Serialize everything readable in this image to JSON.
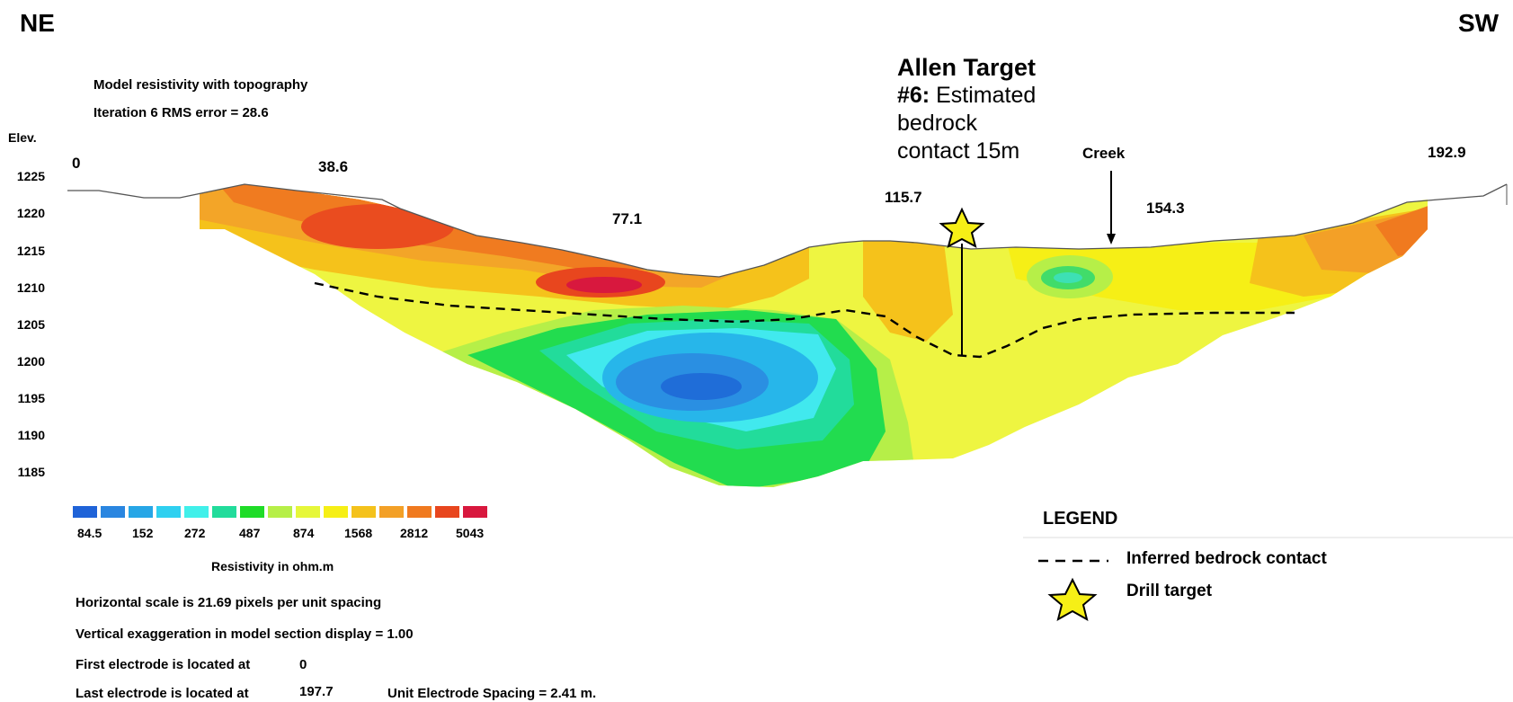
{
  "orientation": {
    "left": "NE",
    "right": "SW"
  },
  "header": {
    "line1": "Model resistivity with topography",
    "line2": "Iteration 6 RMS error = 28.6"
  },
  "elevation_axis": {
    "label": "Elev.",
    "ticks": [
      "1225",
      "1220",
      "1215",
      "1210",
      "1205",
      "1200",
      "1195",
      "1190",
      "1185"
    ]
  },
  "distance_axis": {
    "ticks": [
      "0",
      "38.6",
      "77.1",
      "115.7",
      "154.3",
      "192.9"
    ]
  },
  "annotations": {
    "creek": "Creek",
    "target_name": "Allen Target",
    "target_number": "#6:",
    "target_line1": "Estimated",
    "target_line2": "bedrock",
    "target_line3": "contact 15m"
  },
  "color_scale": {
    "colors": [
      "#1f63d8",
      "#2a86e0",
      "#27a6e6",
      "#2fd0f0",
      "#41f0ea",
      "#22dc9b",
      "#1fdc28",
      "#b6ef48",
      "#e6f73a",
      "#f6ef16",
      "#f4c21c",
      "#f3a027",
      "#f07a1f",
      "#e8461e",
      "#d8183e"
    ],
    "labels": [
      "84.5",
      "152",
      "272",
      "487",
      "874",
      "1568",
      "2812",
      "5043"
    ],
    "title": "Resistivity in ohm.m"
  },
  "info": {
    "horizontal_scale": "Horizontal scale is 21.69 pixels per unit spacing",
    "vertical_exaggeration": "Vertical exaggeration in model section display = 1.00",
    "first_electrode": "First electrode is located at",
    "first_electrode_value": "0",
    "last_electrode": "Last electrode is located at",
    "last_electrode_value": "197.7",
    "unit_spacing": "Unit Electrode Spacing = 2.41 m."
  },
  "legend": {
    "title": "LEGEND",
    "inferred_contact": "Inferred bedrock contact",
    "drill_target": "Drill target"
  }
}
